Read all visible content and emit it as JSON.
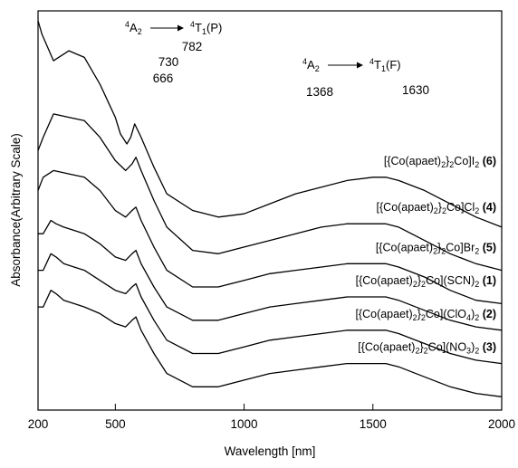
{
  "chart_data": {
    "type": "line",
    "xlabel": "Wavelength [nm]",
    "ylabel": "Absorbance(Arbitrary Scale)",
    "xlim": [
      200,
      2000
    ],
    "x_ticks": [
      "200",
      "500",
      "1000",
      "1500",
      "2000"
    ],
    "x_tick_values": [
      200,
      500,
      1000,
      1500,
      2000
    ],
    "y_scale": "arbitrary",
    "grid": false,
    "annotations": {
      "transition_p": {
        "from_base": "A",
        "from_pre": "4",
        "from_sub": "2",
        "to_base": "T",
        "to_pre": "4",
        "to_sub": "1",
        "to_suffix": "(P)"
      },
      "transition_f": {
        "from_base": "A",
        "from_pre": "4",
        "from_sub": "2",
        "to_base": "T",
        "to_pre": "4",
        "to_sub": "1",
        "to_suffix": "(F)"
      },
      "peaks": [
        {
          "label": "666",
          "x": 666
        },
        {
          "label": "730",
          "x": 730
        },
        {
          "label": "782",
          "x": 782
        },
        {
          "label": "1368",
          "x": 1368
        },
        {
          "label": "1630",
          "x": 1630
        }
      ]
    },
    "series": [
      {
        "label": {
          "pre": "[{Co(apaet)",
          "sub1": "2",
          "mid": "}",
          "sub2": "2",
          "post": "Co]I",
          "sub3": "2",
          "num": "(6)"
        },
        "x": [
          200,
          215,
          260,
          320,
          380,
          440,
          470,
          500,
          520,
          545,
          560,
          575,
          600,
          650,
          700,
          800,
          900,
          1000,
          1100,
          1200,
          1300,
          1400,
          1500,
          1550,
          1600,
          1700,
          1800,
          1900,
          2000
        ],
        "y": [
          0.97,
          0.93,
          0.85,
          0.88,
          0.86,
          0.78,
          0.73,
          0.68,
          0.63,
          0.6,
          0.62,
          0.66,
          0.62,
          0.53,
          0.45,
          0.4,
          0.38,
          0.39,
          0.42,
          0.45,
          0.47,
          0.49,
          0.5,
          0.5,
          0.49,
          0.46,
          0.42,
          0.38,
          0.35
        ]
      },
      {
        "label": {
          "pre": "[{Co(apaet)",
          "sub1": "2",
          "mid": "}",
          "sub2": "2",
          "post": "Co]Cl",
          "sub3": "2",
          "num": "(4)"
        },
        "x": [
          200,
          220,
          260,
          320,
          380,
          440,
          500,
          540,
          565,
          580,
          600,
          650,
          700,
          800,
          900,
          1000,
          1100,
          1200,
          1300,
          1400,
          1500,
          1550,
          1600,
          1700,
          1800,
          1900,
          2000
        ],
        "y": [
          0.58,
          0.62,
          0.69,
          0.68,
          0.67,
          0.62,
          0.55,
          0.52,
          0.54,
          0.56,
          0.52,
          0.43,
          0.35,
          0.28,
          0.27,
          0.29,
          0.31,
          0.33,
          0.35,
          0.36,
          0.36,
          0.36,
          0.35,
          0.31,
          0.27,
          0.24,
          0.22
        ]
      },
      {
        "label": {
          "pre": "[{Co(apaet)",
          "sub1": "2",
          "mid": "}",
          "sub2": "2",
          "post": "Co]Br",
          "sub3": "2",
          "num": "(5)"
        },
        "x": [
          200,
          220,
          260,
          320,
          380,
          440,
          500,
          540,
          565,
          580,
          600,
          650,
          700,
          800,
          900,
          1000,
          1100,
          1200,
          1300,
          1400,
          1500,
          1550,
          1600,
          1700,
          1800,
          1900,
          2000
        ],
        "y": [
          0.46,
          0.5,
          0.52,
          0.51,
          0.5,
          0.46,
          0.4,
          0.38,
          0.4,
          0.41,
          0.37,
          0.29,
          0.22,
          0.17,
          0.17,
          0.19,
          0.21,
          0.22,
          0.23,
          0.24,
          0.24,
          0.24,
          0.23,
          0.2,
          0.16,
          0.13,
          0.12
        ]
      },
      {
        "label": {
          "pre": "[{Co(apaet)",
          "sub1": "2",
          "mid": "}",
          "sub2": "2",
          "post": "Co](SCN)",
          "sub3": "2",
          "num": "(1)"
        },
        "x": [
          200,
          220,
          250,
          270,
          300,
          340,
          380,
          440,
          500,
          540,
          565,
          580,
          600,
          650,
          700,
          800,
          900,
          1000,
          1100,
          1200,
          1300,
          1400,
          1500,
          1550,
          1600,
          1700,
          1800,
          1900,
          2000
        ],
        "y": [
          0.33,
          0.33,
          0.37,
          0.36,
          0.35,
          0.34,
          0.33,
          0.3,
          0.26,
          0.25,
          0.27,
          0.28,
          0.24,
          0.17,
          0.11,
          0.07,
          0.07,
          0.09,
          0.11,
          0.12,
          0.13,
          0.14,
          0.14,
          0.14,
          0.13,
          0.1,
          0.07,
          0.05,
          0.04
        ]
      },
      {
        "label": {
          "pre": "[{Co(apaet)",
          "sub1": "2",
          "mid": "}",
          "sub2": "2",
          "post": "Co](ClO",
          "sub3": "4",
          "tail": ")",
          "sub4": "2",
          "num": "(2)"
        },
        "x": [
          200,
          220,
          250,
          270,
          300,
          340,
          380,
          440,
          500,
          540,
          565,
          580,
          600,
          650,
          700,
          800,
          900,
          1000,
          1100,
          1200,
          1300,
          1400,
          1500,
          1550,
          1600,
          1700,
          1800,
          1900,
          2000
        ],
        "y": [
          0.22,
          0.22,
          0.27,
          0.26,
          0.24,
          0.23,
          0.22,
          0.19,
          0.16,
          0.15,
          0.17,
          0.18,
          0.14,
          0.07,
          0.01,
          -0.03,
          -0.03,
          -0.01,
          0.01,
          0.02,
          0.03,
          0.04,
          0.04,
          0.04,
          0.03,
          0.0,
          -0.03,
          -0.05,
          -0.06
        ]
      },
      {
        "label": {
          "pre": "[{Co(apaet)",
          "sub1": "2",
          "mid": "}",
          "sub2": "2",
          "post": "Co](NO",
          "sub3": "3",
          "tail": ")",
          "sub4": "2",
          "num": "(3)"
        },
        "x": [
          200,
          220,
          250,
          270,
          300,
          340,
          380,
          440,
          500,
          540,
          565,
          580,
          600,
          650,
          700,
          800,
          900,
          1000,
          1100,
          1200,
          1300,
          1400,
          1500,
          1550,
          1600,
          1700,
          1800,
          1900,
          2000
        ],
        "y": [
          0.11,
          0.11,
          0.16,
          0.15,
          0.13,
          0.12,
          0.11,
          0.09,
          0.06,
          0.05,
          0.07,
          0.08,
          0.04,
          -0.03,
          -0.09,
          -0.13,
          -0.13,
          -0.11,
          -0.09,
          -0.08,
          -0.07,
          -0.06,
          -0.06,
          -0.06,
          -0.07,
          -0.1,
          -0.13,
          -0.15,
          -0.16
        ]
      }
    ]
  }
}
